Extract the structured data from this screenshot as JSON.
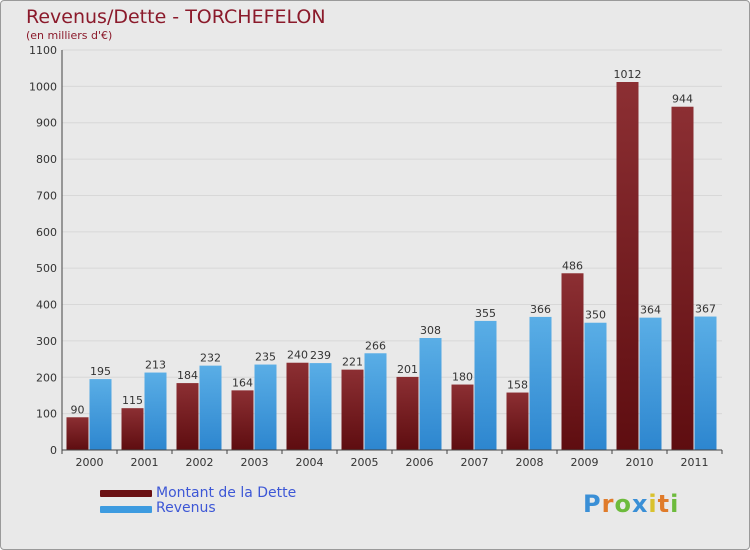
{
  "title": "Revenus/Dette - TORCHEFELON",
  "subtitle": "(en milliers d'€)",
  "legend": {
    "debt_label": "Montant de la Dette",
    "revenue_label": "Revenus"
  },
  "logo": {
    "text": "Proxiti",
    "letters": [
      "P",
      "r",
      "o",
      "x",
      "i",
      "t",
      "i"
    ],
    "colors": [
      "#3a8fd6",
      "#e07b2a",
      "#6dbb3c",
      "#3a8fd6",
      "#d9c22e",
      "#e07b2a",
      "#6dbb3c"
    ]
  },
  "colors": {
    "debt": "#7a1518",
    "revenue": "#3d9be0",
    "background": "#e9e9e9",
    "grid": "#d8d8d8",
    "title": "#8b1a2b",
    "legend_text": "#3d57d6"
  },
  "chart_data": {
    "type": "bar",
    "title": "Revenus/Dette - TORCHEFELON",
    "subtitle": "(en milliers d'€)",
    "categories": [
      "2000",
      "2001",
      "2002",
      "2003",
      "2004",
      "2005",
      "2006",
      "2007",
      "2008",
      "2009",
      "2010",
      "2011"
    ],
    "series": [
      {
        "name": "Montant de la Dette",
        "values": [
          90,
          115,
          184,
          164,
          240,
          221,
          201,
          180,
          158,
          486,
          1012,
          944
        ]
      },
      {
        "name": "Revenus",
        "values": [
          195,
          213,
          232,
          235,
          239,
          266,
          308,
          355,
          366,
          350,
          364,
          367
        ]
      }
    ],
    "ylim": [
      0,
      1100
    ],
    "yticks": [
      0,
      100,
      200,
      300,
      400,
      500,
      600,
      700,
      800,
      900,
      1000,
      1100
    ],
    "grid": true,
    "legend_position": "bottom-left"
  }
}
